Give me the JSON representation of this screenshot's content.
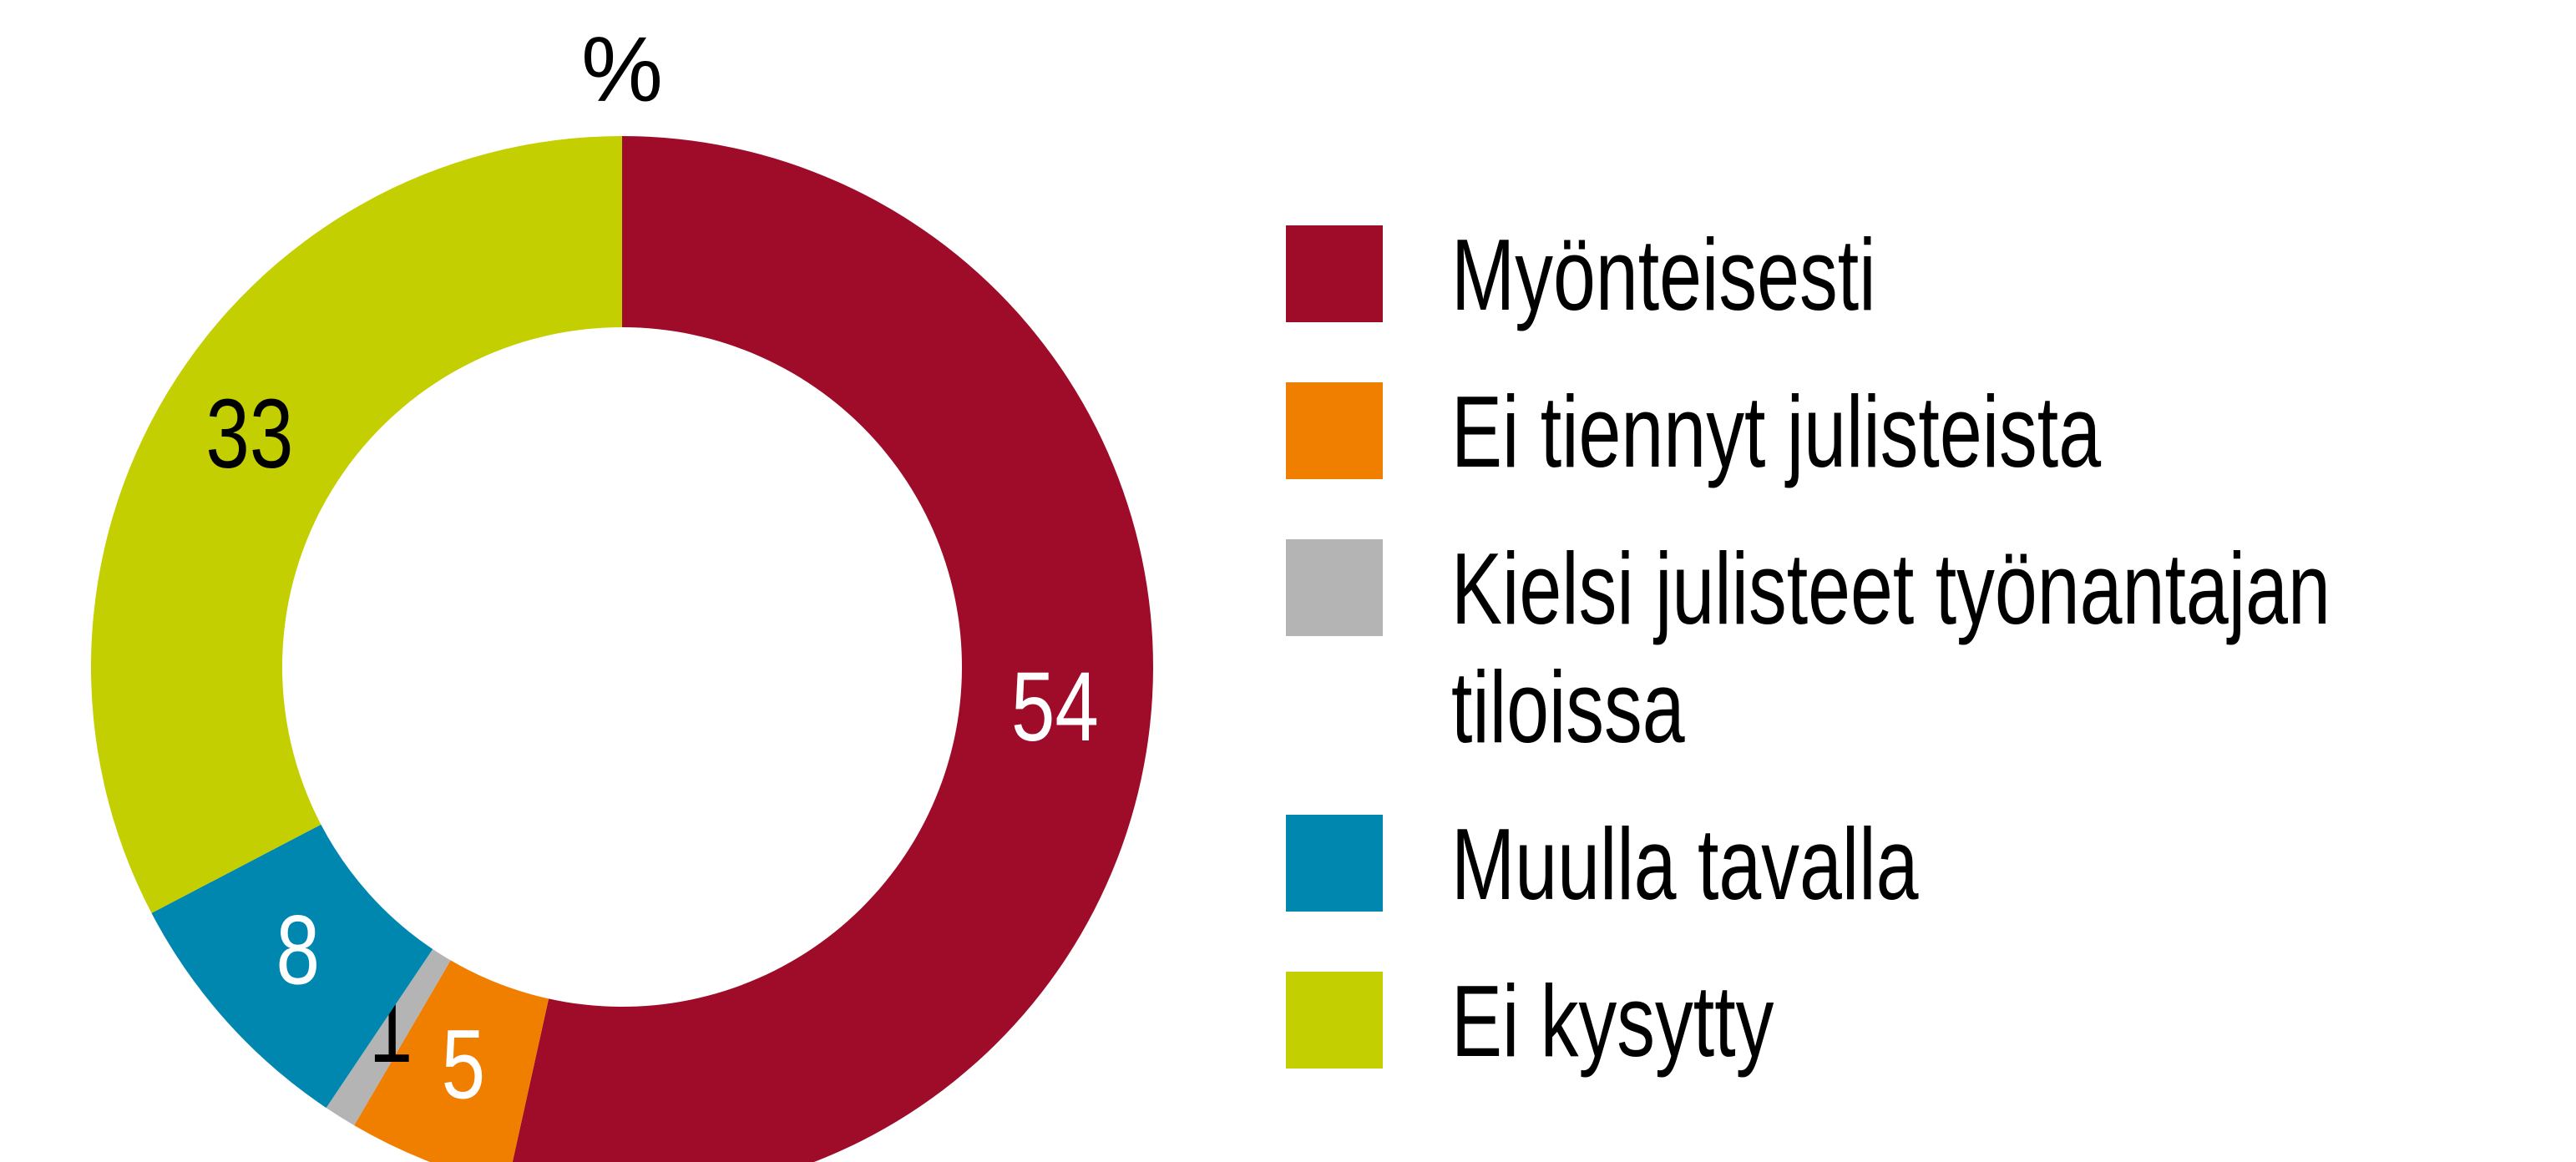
{
  "chart_data": {
    "type": "donut",
    "title": "%",
    "categories": [
      "Myönteisesti",
      "Ei tiennyt julisteista",
      "Kielsi julisteet työnantajan tiloissa",
      "Muulla tavalla",
      "Ei kysytty"
    ],
    "values": [
      54,
      5,
      1,
      8,
      33
    ],
    "colors": [
      "#9e0c29",
      "#f07f00",
      "#b4b4b4",
      "#0087b0",
      "#c3cf00"
    ],
    "label_colors": [
      "#ffffff",
      "#ffffff",
      "#000000",
      "#ffffff",
      "#000000"
    ],
    "legend": "right"
  }
}
